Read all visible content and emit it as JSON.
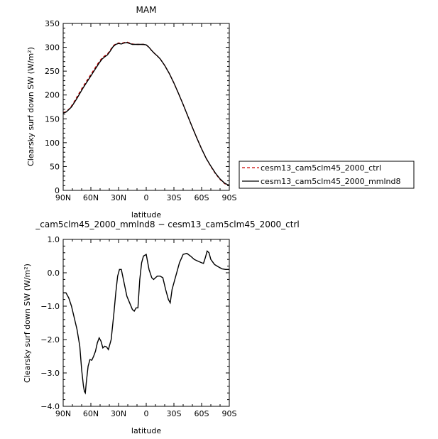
{
  "chart_data": [
    {
      "type": "line",
      "title": "MAM",
      "xlabel": "latitude",
      "ylabel": "Clearsky surf down SW (W/m²)",
      "xlim": [
        90,
        -90
      ],
      "ylim": [
        0,
        350
      ],
      "xticks": [
        90,
        60,
        30,
        0,
        -30,
        -60,
        -90
      ],
      "xtick_labels": [
        "90N",
        "60N",
        "30N",
        "0",
        "30S",
        "60S",
        "90S"
      ],
      "yticks": [
        0,
        50,
        100,
        150,
        200,
        250,
        300,
        350
      ],
      "ytick_labels": [
        "0",
        "50",
        "100",
        "150",
        "200",
        "250",
        "300",
        "350"
      ],
      "legend": {
        "placement": "right",
        "entries": [
          "cesm13_cam5clm45_2000_ctrl",
          "cesm13_cam5clm45_2000_mmlnd8"
        ]
      },
      "series": [
        {
          "name": "cesm13_cam5clm45_2000_ctrl",
          "color": "#cc0000",
          "style": "dashed",
          "x": [
            90,
            87,
            84,
            81,
            78,
            75,
            72,
            69,
            66,
            63,
            60,
            57,
            54,
            51,
            48,
            45,
            42,
            39,
            36,
            33,
            30,
            27,
            24,
            21,
            18,
            15,
            12,
            9,
            6,
            3,
            0,
            -3,
            -6,
            -9,
            -12,
            -15,
            -20,
            -25,
            -30,
            -35,
            -40,
            -45,
            -50,
            -55,
            -60,
            -65,
            -70,
            -75,
            -80,
            -85,
            -88,
            -90
          ],
          "y": [
            163,
            165,
            170,
            177,
            186,
            196,
            206,
            216,
            225,
            234,
            243,
            252,
            261,
            270,
            277,
            282,
            286,
            294,
            303,
            307,
            309,
            308,
            310,
            311,
            309,
            307,
            306,
            306,
            306,
            306,
            305,
            300,
            293,
            287,
            282,
            276,
            262,
            245,
            225,
            203,
            180,
            156,
            132,
            109,
            87,
            67,
            50,
            35,
            23,
            14,
            11,
            10
          ]
        },
        {
          "name": "cesm13_cam5clm45_2000_mmlnd8",
          "color": "#000000",
          "style": "solid",
          "x": [
            90,
            87,
            84,
            81,
            78,
            75,
            72,
            69,
            66,
            63,
            60,
            57,
            54,
            51,
            48,
            45,
            42,
            39,
            36,
            33,
            30,
            27,
            24,
            21,
            18,
            15,
            12,
            9,
            6,
            3,
            0,
            -3,
            -6,
            -9,
            -12,
            -15,
            -20,
            -25,
            -30,
            -35,
            -40,
            -45,
            -50,
            -55,
            -60,
            -65,
            -70,
            -75,
            -80,
            -85,
            -88,
            -90
          ],
          "y": [
            162,
            164,
            169,
            175,
            184,
            193,
            203,
            213,
            222,
            231,
            240,
            249,
            258,
            267,
            275,
            280,
            284,
            292,
            301,
            306,
            308,
            307,
            309,
            310,
            308,
            306,
            306,
            306,
            306,
            306,
            305,
            300,
            293,
            287,
            282,
            276,
            262,
            245,
            225,
            203,
            180,
            156,
            132,
            109,
            87,
            67,
            51,
            36,
            24,
            15,
            12,
            11
          ]
        }
      ]
    },
    {
      "type": "line",
      "title": "_cam5clm45_2000_mmlnd8 − cesm13_cam5clm45_2000_ctrl",
      "xlabel": "latitude",
      "ylabel": "Clearsky surf down SW (W/m²)",
      "xlim": [
        90,
        -90
      ],
      "ylim": [
        -4,
        1
      ],
      "xticks": [
        90,
        60,
        30,
        0,
        -30,
        -60,
        -90
      ],
      "xtick_labels": [
        "90N",
        "60N",
        "30N",
        "0",
        "30S",
        "60S",
        "90S"
      ],
      "yticks": [
        -4,
        -3,
        -2,
        -1,
        0,
        1
      ],
      "ytick_labels": [
        "−4.0",
        "−3.0",
        "−2.0",
        "−1.0",
        "0.0",
        "1.0"
      ],
      "series": [
        {
          "color": "#000000",
          "style": "solid",
          "x": [
            90,
            87,
            84,
            81,
            78,
            75,
            72,
            70,
            68,
            67,
            66,
            65,
            63,
            61,
            59,
            57,
            55,
            53,
            51,
            49,
            47,
            45,
            43,
            41,
            38,
            35,
            33,
            31,
            29,
            27,
            24,
            21,
            18,
            15,
            13,
            11,
            9,
            7,
            5,
            3,
            0,
            -3,
            -6,
            -8,
            -10,
            -12,
            -15,
            -18,
            -21,
            -24,
            -26,
            -28,
            -32,
            -36,
            -40,
            -44,
            -48,
            -52,
            -56,
            -60,
            -62,
            -64,
            -66,
            -68,
            -70,
            -74,
            -78,
            -82,
            -86,
            -90
          ],
          "y": [
            -0.6,
            -0.6,
            -0.75,
            -1.0,
            -1.35,
            -1.7,
            -2.2,
            -2.9,
            -3.4,
            -3.55,
            -3.6,
            -3.3,
            -2.8,
            -2.6,
            -2.62,
            -2.5,
            -2.35,
            -2.1,
            -1.95,
            -2.05,
            -2.25,
            -2.2,
            -2.22,
            -2.3,
            -2.0,
            -1.2,
            -0.6,
            -0.1,
            0.1,
            0.1,
            -0.3,
            -0.7,
            -0.9,
            -1.1,
            -1.15,
            -1.05,
            -1.05,
            -0.2,
            0.3,
            0.5,
            0.55,
            0.1,
            -0.15,
            -0.2,
            -0.15,
            -0.1,
            -0.1,
            -0.15,
            -0.5,
            -0.8,
            -0.9,
            -0.5,
            -0.1,
            0.3,
            0.55,
            0.58,
            0.5,
            0.4,
            0.35,
            0.3,
            0.28,
            0.45,
            0.65,
            0.6,
            0.4,
            0.25,
            0.18,
            0.12,
            0.1,
            0.1
          ]
        }
      ]
    }
  ]
}
